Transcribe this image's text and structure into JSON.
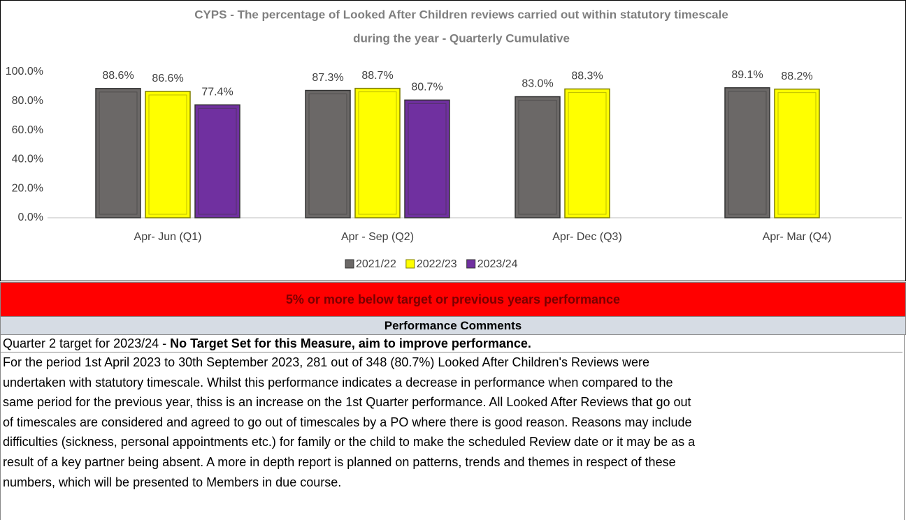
{
  "chart_data": {
    "type": "bar",
    "title": "CYPS - The percentage of Looked After Children reviews carried out within statutory timescale",
    "subtitle": "during the year  - Quarterly Cumulative",
    "categories": [
      "Apr- Jun  (Q1)",
      "Apr - Sep  (Q2)",
      "Apr- Dec   (Q3)",
      "Apr- Mar  (Q4)"
    ],
    "series": [
      {
        "name": "2021/22",
        "color": "#6b6867",
        "values": [
          88.6,
          87.3,
          83.0,
          89.1
        ],
        "value_labels": [
          "88.6%",
          "87.3%",
          "83.0%",
          "89.1%"
        ]
      },
      {
        "name": "2022/23",
        "color": "#ffff00",
        "values": [
          86.6,
          88.7,
          88.3,
          88.2
        ],
        "value_labels": [
          "86.6%",
          "88.7%",
          "88.3%",
          "88.2%"
        ]
      },
      {
        "name": "2023/24",
        "color": "#7030a0",
        "values": [
          77.4,
          80.7,
          null,
          null
        ],
        "value_labels": [
          "77.4%",
          "80.7%",
          null,
          null
        ]
      }
    ],
    "ylim": [
      0,
      100
    ],
    "yticks": [
      {
        "value": 0,
        "label": "0.0%"
      },
      {
        "value": 20,
        "label": "20.0%"
      },
      {
        "value": 40,
        "label": "40.0%"
      },
      {
        "value": 60,
        "label": "60.0%"
      },
      {
        "value": 80,
        "label": "80.0%"
      },
      {
        "value": 100,
        "label": "100.0%"
      }
    ],
    "grid": false,
    "legend": "bottom"
  },
  "status": "5% or more below target or previous years performance",
  "comments": {
    "heading": "Performance Comments",
    "target_prefix": "Quarter 2 target for 2023/24 - ",
    "target_bold": "No Target Set for this Measure, aim to improve performance.",
    "lines": [
      "For the period 1st April 2023 to 30th September 2023, 281 out of 348 (80.7%) Looked After Children's Reviews were",
      "undertaken with statutory timescale. Whilst this performance indicates a decrease in performance when compared to the",
      "same period for the previous year, thiss is an increase on the 1st Quarter performance. All Looked After Reviews that go out",
      "of timescales are considered and agreed to go out of timescales by a PO where there is good reason. Reasons may include",
      "difficulties (sickness, personal appointments etc.) for family or the child to make the scheduled Review date or it may be as a",
      "result of a key partner being absent. A more in depth report is planned on patterns, trends and themes in respect of these",
      "numbers, which will be presented to Members in due course."
    ]
  }
}
